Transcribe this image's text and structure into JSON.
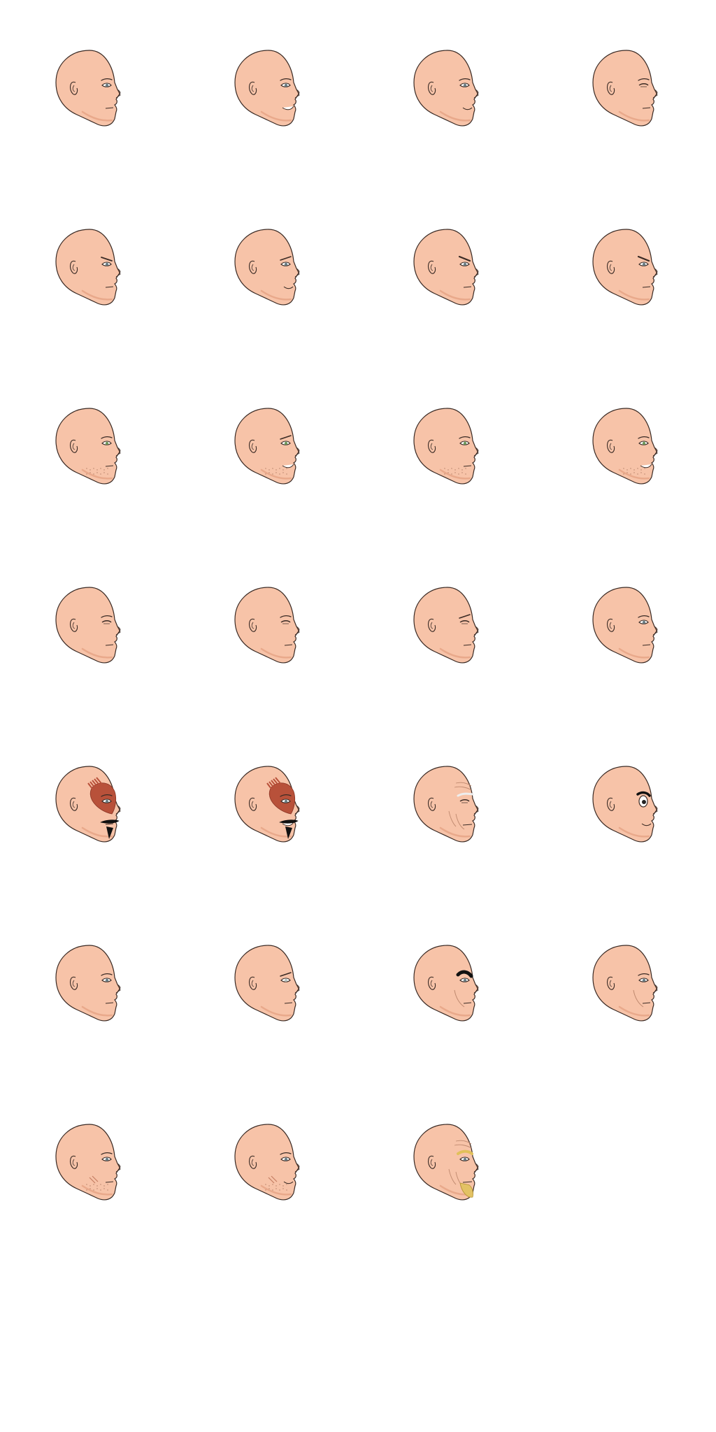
{
  "sheet": {
    "background": "#ffffff",
    "columns": 4,
    "skin_color": "#f7c3a8",
    "skin_shadow": "#e9a98b",
    "outline_color": "#3a2a24"
  },
  "heads": [
    {
      "name": "face-neutral",
      "eye": "normal",
      "brow": "normal",
      "mouth": "neutral",
      "extra": "none"
    },
    {
      "name": "face-grin",
      "eye": "normal",
      "brow": "normal",
      "mouth": "grin",
      "extra": "none"
    },
    {
      "name": "face-smile",
      "eye": "normal",
      "brow": "normal",
      "mouth": "smile",
      "extra": "none"
    },
    {
      "name": "face-calm",
      "eye": "half",
      "brow": "normal",
      "mouth": "neutral",
      "extra": "none"
    },
    {
      "name": "face-frown",
      "eye": "normal",
      "brow": "frown",
      "mouth": "neutral",
      "extra": "none"
    },
    {
      "name": "face-worried",
      "eye": "normal",
      "brow": "worried",
      "mouth": "smile",
      "extra": "none"
    },
    {
      "name": "face-angry",
      "eye": "normal",
      "brow": "angry",
      "mouth": "neutral",
      "extra": "none"
    },
    {
      "name": "face-stern",
      "eye": "normal",
      "brow": "angry",
      "mouth": "neutral",
      "extra": "none"
    },
    {
      "name": "face-stubble",
      "eye": "green",
      "brow": "normal",
      "mouth": "neutral",
      "extra": "stubble"
    },
    {
      "name": "face-stubble-grin",
      "eye": "green",
      "brow": "worried",
      "mouth": "grin",
      "extra": "stubble"
    },
    {
      "name": "face-stubble-calm",
      "eye": "green",
      "brow": "normal",
      "mouth": "neutral",
      "extra": "stubble"
    },
    {
      "name": "face-stubble-smile",
      "eye": "green",
      "brow": "normal",
      "mouth": "grin",
      "extra": "stubble"
    },
    {
      "name": "face-narrow",
      "eye": "half",
      "brow": "normal",
      "mouth": "neutral",
      "extra": "none"
    },
    {
      "name": "face-narrow-2",
      "eye": "half",
      "brow": "normal",
      "mouth": "neutral",
      "extra": "none"
    },
    {
      "name": "face-sleepy",
      "eye": "half",
      "brow": "worried",
      "mouth": "neutral",
      "extra": "none"
    },
    {
      "name": "face-alert",
      "eye": "normal",
      "brow": "normal",
      "mouth": "neutral",
      "extra": "none"
    },
    {
      "name": "face-warpaint",
      "eye": "normal",
      "brow": "normal",
      "mouth": "mustache",
      "extra": "warpaint"
    },
    {
      "name": "face-warpaint-grin",
      "eye": "normal",
      "brow": "normal",
      "mouth": "mustache-grin",
      "extra": "warpaint"
    },
    {
      "name": "face-old",
      "eye": "half",
      "brow": "white",
      "mouth": "old",
      "extra": "wrinkles"
    },
    {
      "name": "face-cartoon",
      "eye": "big",
      "brow": "thick",
      "mouth": "smile",
      "extra": "none"
    },
    {
      "name": "face-plain",
      "eye": "normal",
      "brow": "normal",
      "mouth": "neutral",
      "extra": "none"
    },
    {
      "name": "face-pale-eyes",
      "eye": "pale",
      "brow": "worried",
      "mouth": "neutral",
      "extra": "none"
    },
    {
      "name": "face-heavy-brow",
      "eye": "normal",
      "brow": "heavy",
      "mouth": "neutral",
      "extra": "cheek"
    },
    {
      "name": "face-gaunt",
      "eye": "normal",
      "brow": "normal",
      "mouth": "neutral",
      "extra": "cheek"
    },
    {
      "name": "face-scarred",
      "eye": "normal",
      "brow": "normal",
      "mouth": "neutral",
      "extra": "scars"
    },
    {
      "name": "face-scarred-smile",
      "eye": "normal",
      "brow": "normal",
      "mouth": "smile",
      "extra": "scars"
    },
    {
      "name": "face-blond-goatee",
      "eye": "normal",
      "brow": "blond",
      "mouth": "goatee",
      "extra": "wrinkles"
    }
  ]
}
